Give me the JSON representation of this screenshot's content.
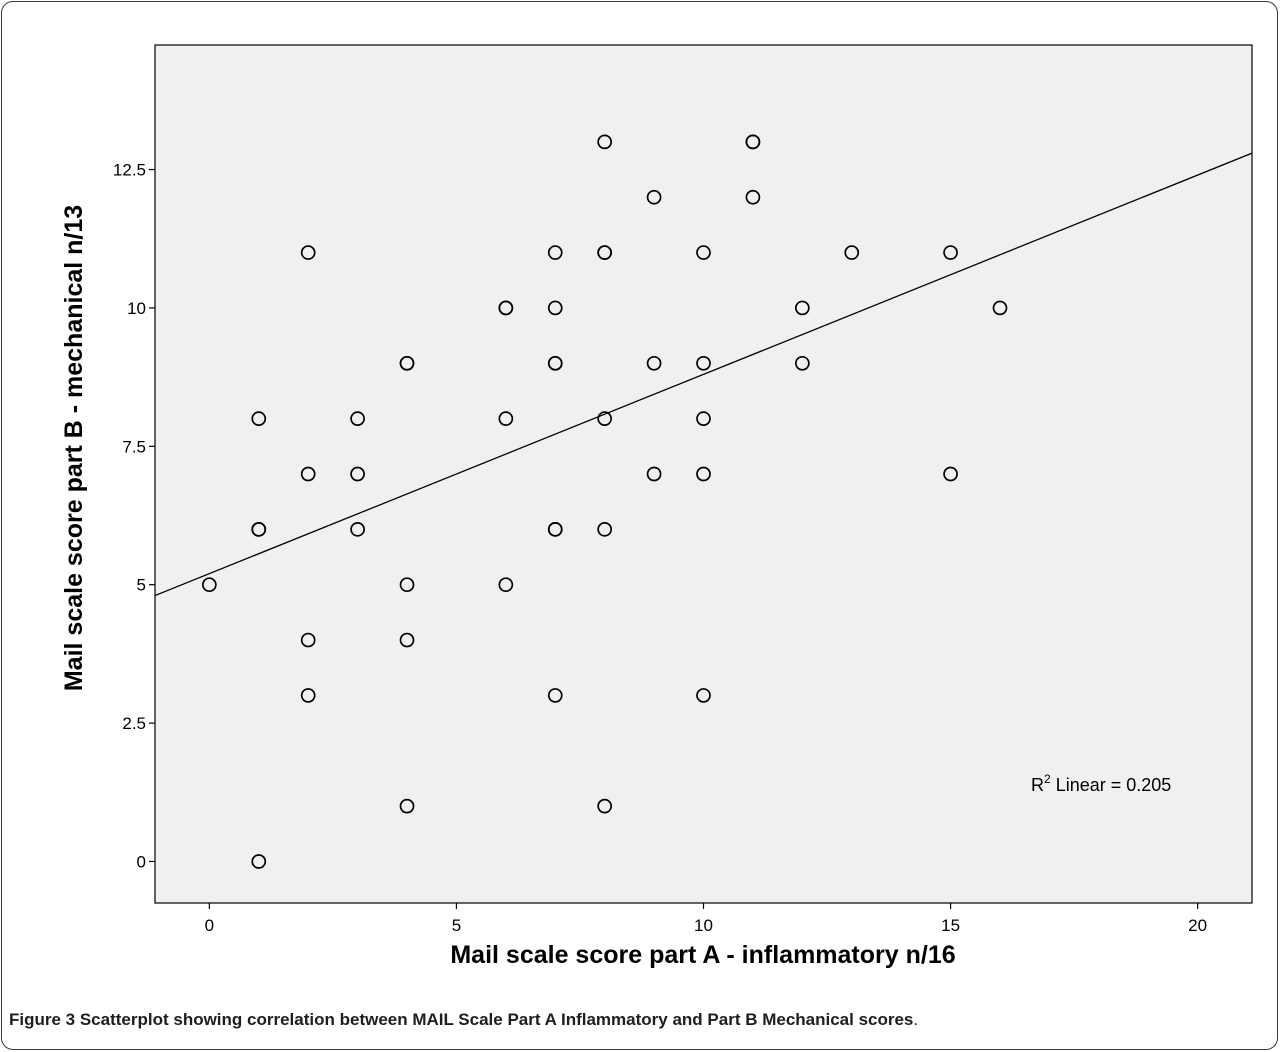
{
  "chart_data": {
    "type": "scatter",
    "xlabel": "Mail scale score part A - inflammatory n/16",
    "ylabel": "Mail scale score part B - mechanical n/13",
    "xlim": [
      -1.1,
      21.1
    ],
    "ylim": [
      -0.75,
      14.75
    ],
    "xticks": [
      0,
      5,
      10,
      15,
      20
    ],
    "xtick_labels": [
      "0",
      "5",
      "10",
      "15",
      "20"
    ],
    "yticks": [
      0,
      2.5,
      5,
      7.5,
      10,
      12.5
    ],
    "ytick_labels": [
      "0",
      "2.5",
      "5",
      "7.5",
      "10",
      "12.5"
    ],
    "grid": false,
    "background": "#f0f0f0",
    "marker": "open-circle",
    "points": [
      {
        "x": 0,
        "y": 5
      },
      {
        "x": 1,
        "y": 0
      },
      {
        "x": 1,
        "y": 6
      },
      {
        "x": 1,
        "y": 6
      },
      {
        "x": 1,
        "y": 8
      },
      {
        "x": 2,
        "y": 3
      },
      {
        "x": 2,
        "y": 4
      },
      {
        "x": 2,
        "y": 7
      },
      {
        "x": 2,
        "y": 11
      },
      {
        "x": 3,
        "y": 6
      },
      {
        "x": 3,
        "y": 7
      },
      {
        "x": 3,
        "y": 8
      },
      {
        "x": 4,
        "y": 1
      },
      {
        "x": 4,
        "y": 4
      },
      {
        "x": 4,
        "y": 5
      },
      {
        "x": 4,
        "y": 9
      },
      {
        "x": 4,
        "y": 9
      },
      {
        "x": 6,
        "y": 5
      },
      {
        "x": 6,
        "y": 8
      },
      {
        "x": 6,
        "y": 10
      },
      {
        "x": 6,
        "y": 10
      },
      {
        "x": 7,
        "y": 3
      },
      {
        "x": 7,
        "y": 6
      },
      {
        "x": 7,
        "y": 6
      },
      {
        "x": 7,
        "y": 9
      },
      {
        "x": 7,
        "y": 9
      },
      {
        "x": 7,
        "y": 10
      },
      {
        "x": 7,
        "y": 11
      },
      {
        "x": 8,
        "y": 1
      },
      {
        "x": 8,
        "y": 6
      },
      {
        "x": 8,
        "y": 8
      },
      {
        "x": 8,
        "y": 11
      },
      {
        "x": 8,
        "y": 11
      },
      {
        "x": 8,
        "y": 13
      },
      {
        "x": 9,
        "y": 7
      },
      {
        "x": 9,
        "y": 9
      },
      {
        "x": 9,
        "y": 12
      },
      {
        "x": 10,
        "y": 3
      },
      {
        "x": 10,
        "y": 7
      },
      {
        "x": 10,
        "y": 8
      },
      {
        "x": 10,
        "y": 9
      },
      {
        "x": 10,
        "y": 11
      },
      {
        "x": 11,
        "y": 12
      },
      {
        "x": 11,
        "y": 13
      },
      {
        "x": 11,
        "y": 13
      },
      {
        "x": 12,
        "y": 9
      },
      {
        "x": 12,
        "y": 10
      },
      {
        "x": 13,
        "y": 11
      },
      {
        "x": 15,
        "y": 7
      },
      {
        "x": 15,
        "y": 11
      },
      {
        "x": 16,
        "y": 10
      }
    ],
    "fit_line": {
      "type": "linear",
      "intercept": 5.2,
      "slope": 0.36
    },
    "annotation": {
      "text_main": "R",
      "text_sup": "2",
      "text_rest": " Linear = 0.205"
    }
  },
  "caption": {
    "label": "Figure 3",
    "text": " Scatterplot showing correlation between MAIL Scale Part A Inflammatory and Part B Mechanical scores",
    "end": "."
  }
}
